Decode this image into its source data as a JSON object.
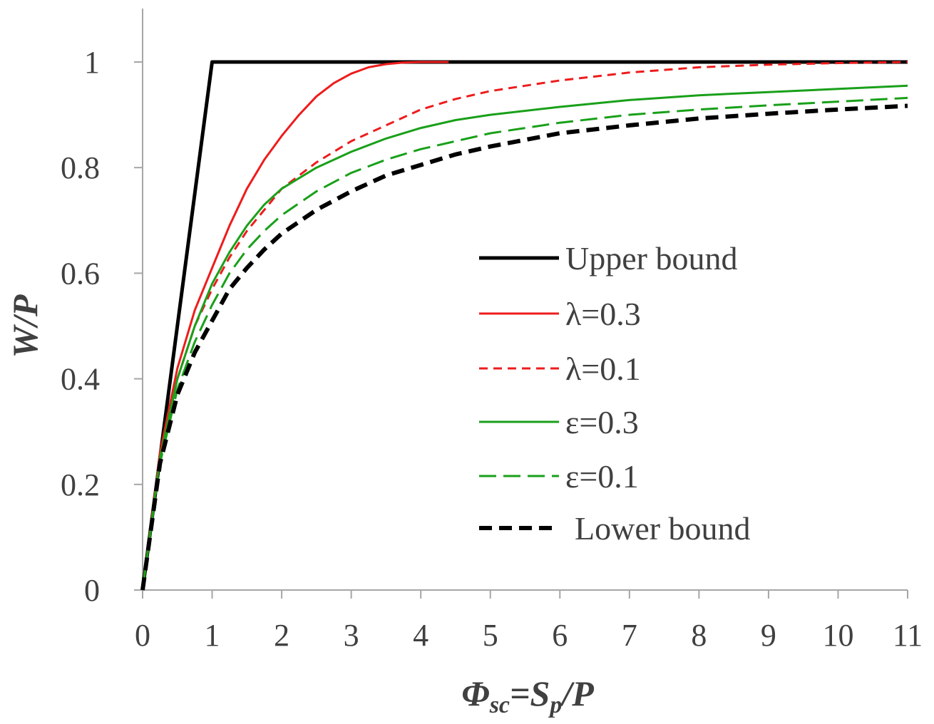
{
  "chart_data": {
    "type": "line",
    "xlabel": {
      "main1": "Φ",
      "sub1": "sc",
      "main2": "=S",
      "sub2": "p",
      "main3": "/P"
    },
    "ylabel": "W/P",
    "xlim": [
      0,
      11
    ],
    "ylim": [
      0,
      1.1
    ],
    "x_ticks": [
      "0",
      "1",
      "2",
      "3",
      "4",
      "5",
      "6",
      "7",
      "8",
      "9",
      "10",
      "11"
    ],
    "y_ticks": [
      "0",
      "0.2",
      "0.4",
      "0.6",
      "0.8",
      "1"
    ],
    "grid": false,
    "legend_position": "right",
    "series": [
      {
        "name": "Upper bound",
        "color": "#000000",
        "dash": "solid",
        "x": [
          0,
          1,
          11
        ],
        "y": [
          0,
          1,
          1
        ]
      },
      {
        "name": "λ=0.3",
        "color": "#ee1c1c",
        "dash": "solid",
        "x": [
          0,
          0.25,
          0.5,
          0.75,
          1,
          1.25,
          1.5,
          1.75,
          2,
          2.25,
          2.5,
          2.75,
          3,
          3.25,
          3.5,
          3.75,
          4,
          4.25,
          4.4
        ],
        "y": [
          0,
          0.26,
          0.42,
          0.53,
          0.61,
          0.69,
          0.76,
          0.815,
          0.86,
          0.9,
          0.935,
          0.96,
          0.978,
          0.99,
          0.996,
          0.999,
          1,
          1,
          1
        ]
      },
      {
        "name": "λ=0.1",
        "color": "#ee1c1c",
        "dash": "dashed",
        "x": [
          0,
          0.25,
          0.5,
          0.75,
          1,
          1.25,
          1.5,
          1.75,
          2,
          2.5,
          3,
          3.5,
          4,
          4.5,
          5,
          5.5,
          6,
          7,
          8,
          9,
          10,
          11
        ],
        "y": [
          0,
          0.25,
          0.4,
          0.5,
          0.57,
          0.63,
          0.68,
          0.72,
          0.76,
          0.81,
          0.85,
          0.88,
          0.91,
          0.93,
          0.945,
          0.955,
          0.965,
          0.98,
          0.99,
          0.995,
          0.998,
          1
        ]
      },
      {
        "name": "ε=0.3",
        "color": "#19a019",
        "dash": "solid",
        "x": [
          0,
          0.25,
          0.5,
          0.75,
          1,
          1.25,
          1.5,
          1.75,
          2,
          2.5,
          3,
          3.5,
          4,
          4.5,
          5,
          6,
          7,
          8,
          9,
          10,
          11
        ],
        "y": [
          0,
          0.25,
          0.4,
          0.5,
          0.58,
          0.64,
          0.69,
          0.73,
          0.76,
          0.8,
          0.83,
          0.855,
          0.875,
          0.89,
          0.9,
          0.915,
          0.928,
          0.937,
          0.943,
          0.949,
          0.955
        ]
      },
      {
        "name": "ε=0.1",
        "color": "#19a019",
        "dash": "longdash",
        "x": [
          0,
          0.25,
          0.5,
          0.75,
          1,
          1.25,
          1.5,
          1.75,
          2,
          2.5,
          3,
          3.5,
          4,
          4.5,
          5,
          6,
          7,
          8,
          9,
          10,
          11
        ],
        "y": [
          0,
          0.24,
          0.38,
          0.47,
          0.54,
          0.6,
          0.645,
          0.68,
          0.71,
          0.755,
          0.79,
          0.815,
          0.835,
          0.85,
          0.865,
          0.885,
          0.9,
          0.91,
          0.918,
          0.925,
          0.932
        ]
      },
      {
        "name": "Lower bound",
        "color": "#000000",
        "dash": "bolddash",
        "x": [
          0,
          0.25,
          0.5,
          0.75,
          1,
          1.25,
          1.5,
          1.75,
          2,
          2.5,
          3,
          3.5,
          4,
          4.5,
          5,
          6,
          7,
          8,
          9,
          10,
          11
        ],
        "y": [
          0,
          0.24,
          0.37,
          0.45,
          0.51,
          0.57,
          0.61,
          0.645,
          0.675,
          0.72,
          0.755,
          0.785,
          0.805,
          0.825,
          0.84,
          0.865,
          0.88,
          0.893,
          0.902,
          0.91,
          0.917
        ]
      }
    ]
  }
}
